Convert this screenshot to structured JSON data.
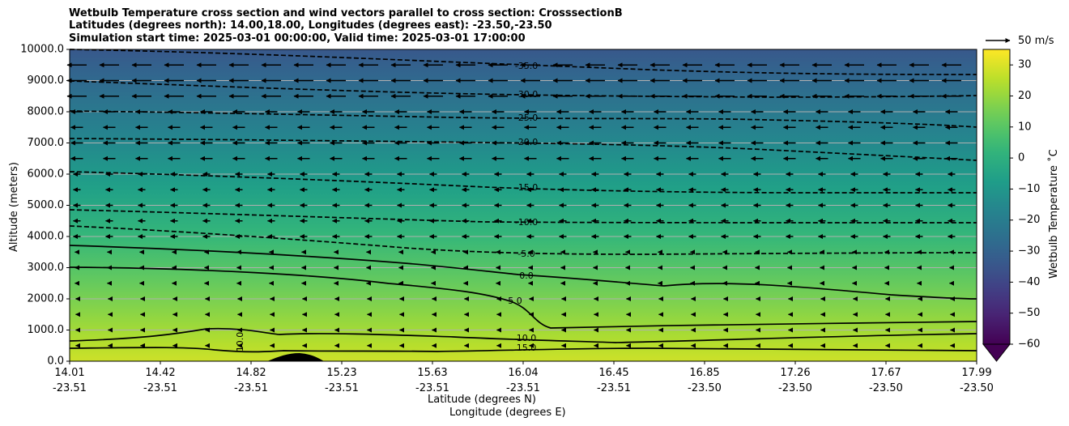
{
  "title_lines": [
    "Wetbulb Temperature cross section and wind vectors parallel to cross section: CrosssectionB",
    "Latitudes (degrees north): 14.00,18.00, Longitudes (degrees east): -23.50,-23.50",
    "Simulation start time: 2025-03-01 00:00:00, Valid time: 2025-03-01 17:00:00"
  ],
  "axes": {
    "ylabel": "Altitude (meters)",
    "xlabel_lat": "Latitude (degrees N)",
    "xlabel_lon": "Longitude (degrees E)",
    "ylim": [
      0,
      10000
    ],
    "y_ticks": [
      "0.0",
      "1000.0",
      "2000.0",
      "3000.0",
      "4000.0",
      "5000.0",
      "6000.0",
      "7000.0",
      "8000.0",
      "9000.0",
      "10000.0"
    ],
    "x_ticks_lat": [
      "14.01",
      "14.42",
      "14.82",
      "15.23",
      "15.63",
      "16.04",
      "16.45",
      "16.85",
      "17.26",
      "17.67",
      "17.99"
    ],
    "x_ticks_lon": [
      "-23.51",
      "-23.51",
      "-23.51",
      "-23.51",
      "-23.51",
      "-23.51",
      "-23.51",
      "-23.50",
      "-23.50",
      "-23.50",
      "-23.50"
    ],
    "grid": "horizontal"
  },
  "colorbar": {
    "label": "Wetbulb Temperature ˚C",
    "range": [
      -60,
      35
    ],
    "ticks": [
      "30",
      "20",
      "10",
      "0",
      "−10",
      "−20",
      "−30",
      "−40",
      "−50",
      "−60"
    ],
    "extend": "min",
    "colormap": "viridis"
  },
  "wind_key": {
    "label": "50 m/s"
  },
  "chart_data": {
    "type": "contour",
    "variable": "Wetbulb Temperature",
    "x_range_lat": [
      14.01,
      17.99
    ],
    "contour_levels": [
      {
        "label": "-35.0",
        "style": "dashed"
      },
      {
        "label": "-30.0",
        "style": "dashed"
      },
      {
        "label": "-25.0",
        "style": "dashed"
      },
      {
        "label": "-20.0",
        "style": "dashed"
      },
      {
        "label": "-15.0",
        "style": "dashed"
      },
      {
        "label": "-10.0",
        "style": "dashed"
      },
      {
        "label": "-5.0",
        "style": "dashed"
      },
      {
        "label": "0.0",
        "style": "solid"
      },
      {
        "label": "5.0",
        "style": "solid"
      },
      {
        "label": "10.0",
        "style": "solid"
      },
      {
        "label": "15.0",
        "style": "solid"
      }
    ],
    "wind_direction": "westward (toward lower latitude)",
    "terrain_peak": {
      "lat": 15.0,
      "alt": 200
    }
  }
}
